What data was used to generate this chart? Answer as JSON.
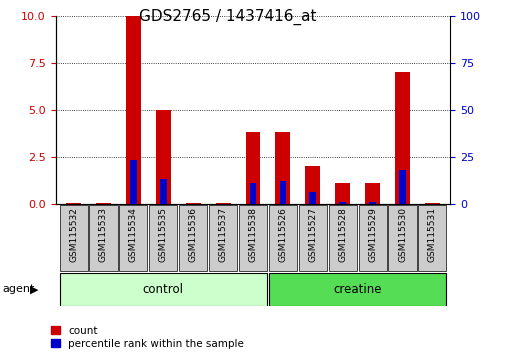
{
  "title": "GDS2765 / 1437416_at",
  "categories": [
    "GSM115532",
    "GSM115533",
    "GSM115534",
    "GSM115535",
    "GSM115536",
    "GSM115537",
    "GSM115538",
    "GSM115526",
    "GSM115527",
    "GSM115528",
    "GSM115529",
    "GSM115530",
    "GSM115531"
  ],
  "red_values": [
    0.05,
    0.05,
    10.0,
    5.0,
    0.05,
    0.05,
    3.8,
    3.8,
    2.0,
    1.1,
    1.1,
    7.0,
    0.05
  ],
  "blue_values": [
    0.0,
    0.0,
    23.0,
    13.0,
    0.0,
    0.0,
    11.0,
    12.0,
    6.0,
    1.0,
    1.0,
    18.0,
    0.0
  ],
  "ylim_left": [
    0,
    10
  ],
  "ylim_right": [
    0,
    100
  ],
  "yticks_left": [
    0,
    2.5,
    5,
    7.5,
    10
  ],
  "yticks_right": [
    0,
    25,
    50,
    75,
    100
  ],
  "red_color": "#cc0000",
  "blue_color": "#0000cc",
  "control_indices": [
    0,
    1,
    2,
    3,
    4,
    5,
    6
  ],
  "creatine_indices": [
    7,
    8,
    9,
    10,
    11,
    12
  ],
  "control_label": "control",
  "creatine_label": "creatine",
  "agent_label": "agent",
  "legend_count": "count",
  "legend_percentile": "percentile rank within the sample",
  "control_color": "#ccffcc",
  "creatine_color": "#55dd55",
  "bar_width": 0.5,
  "title_fontsize": 11,
  "tick_label_fontsize": 7,
  "axis_label_color_left": "#cc0000",
  "axis_label_color_right": "#0000cc",
  "xlabel_bg_color": "#cccccc"
}
